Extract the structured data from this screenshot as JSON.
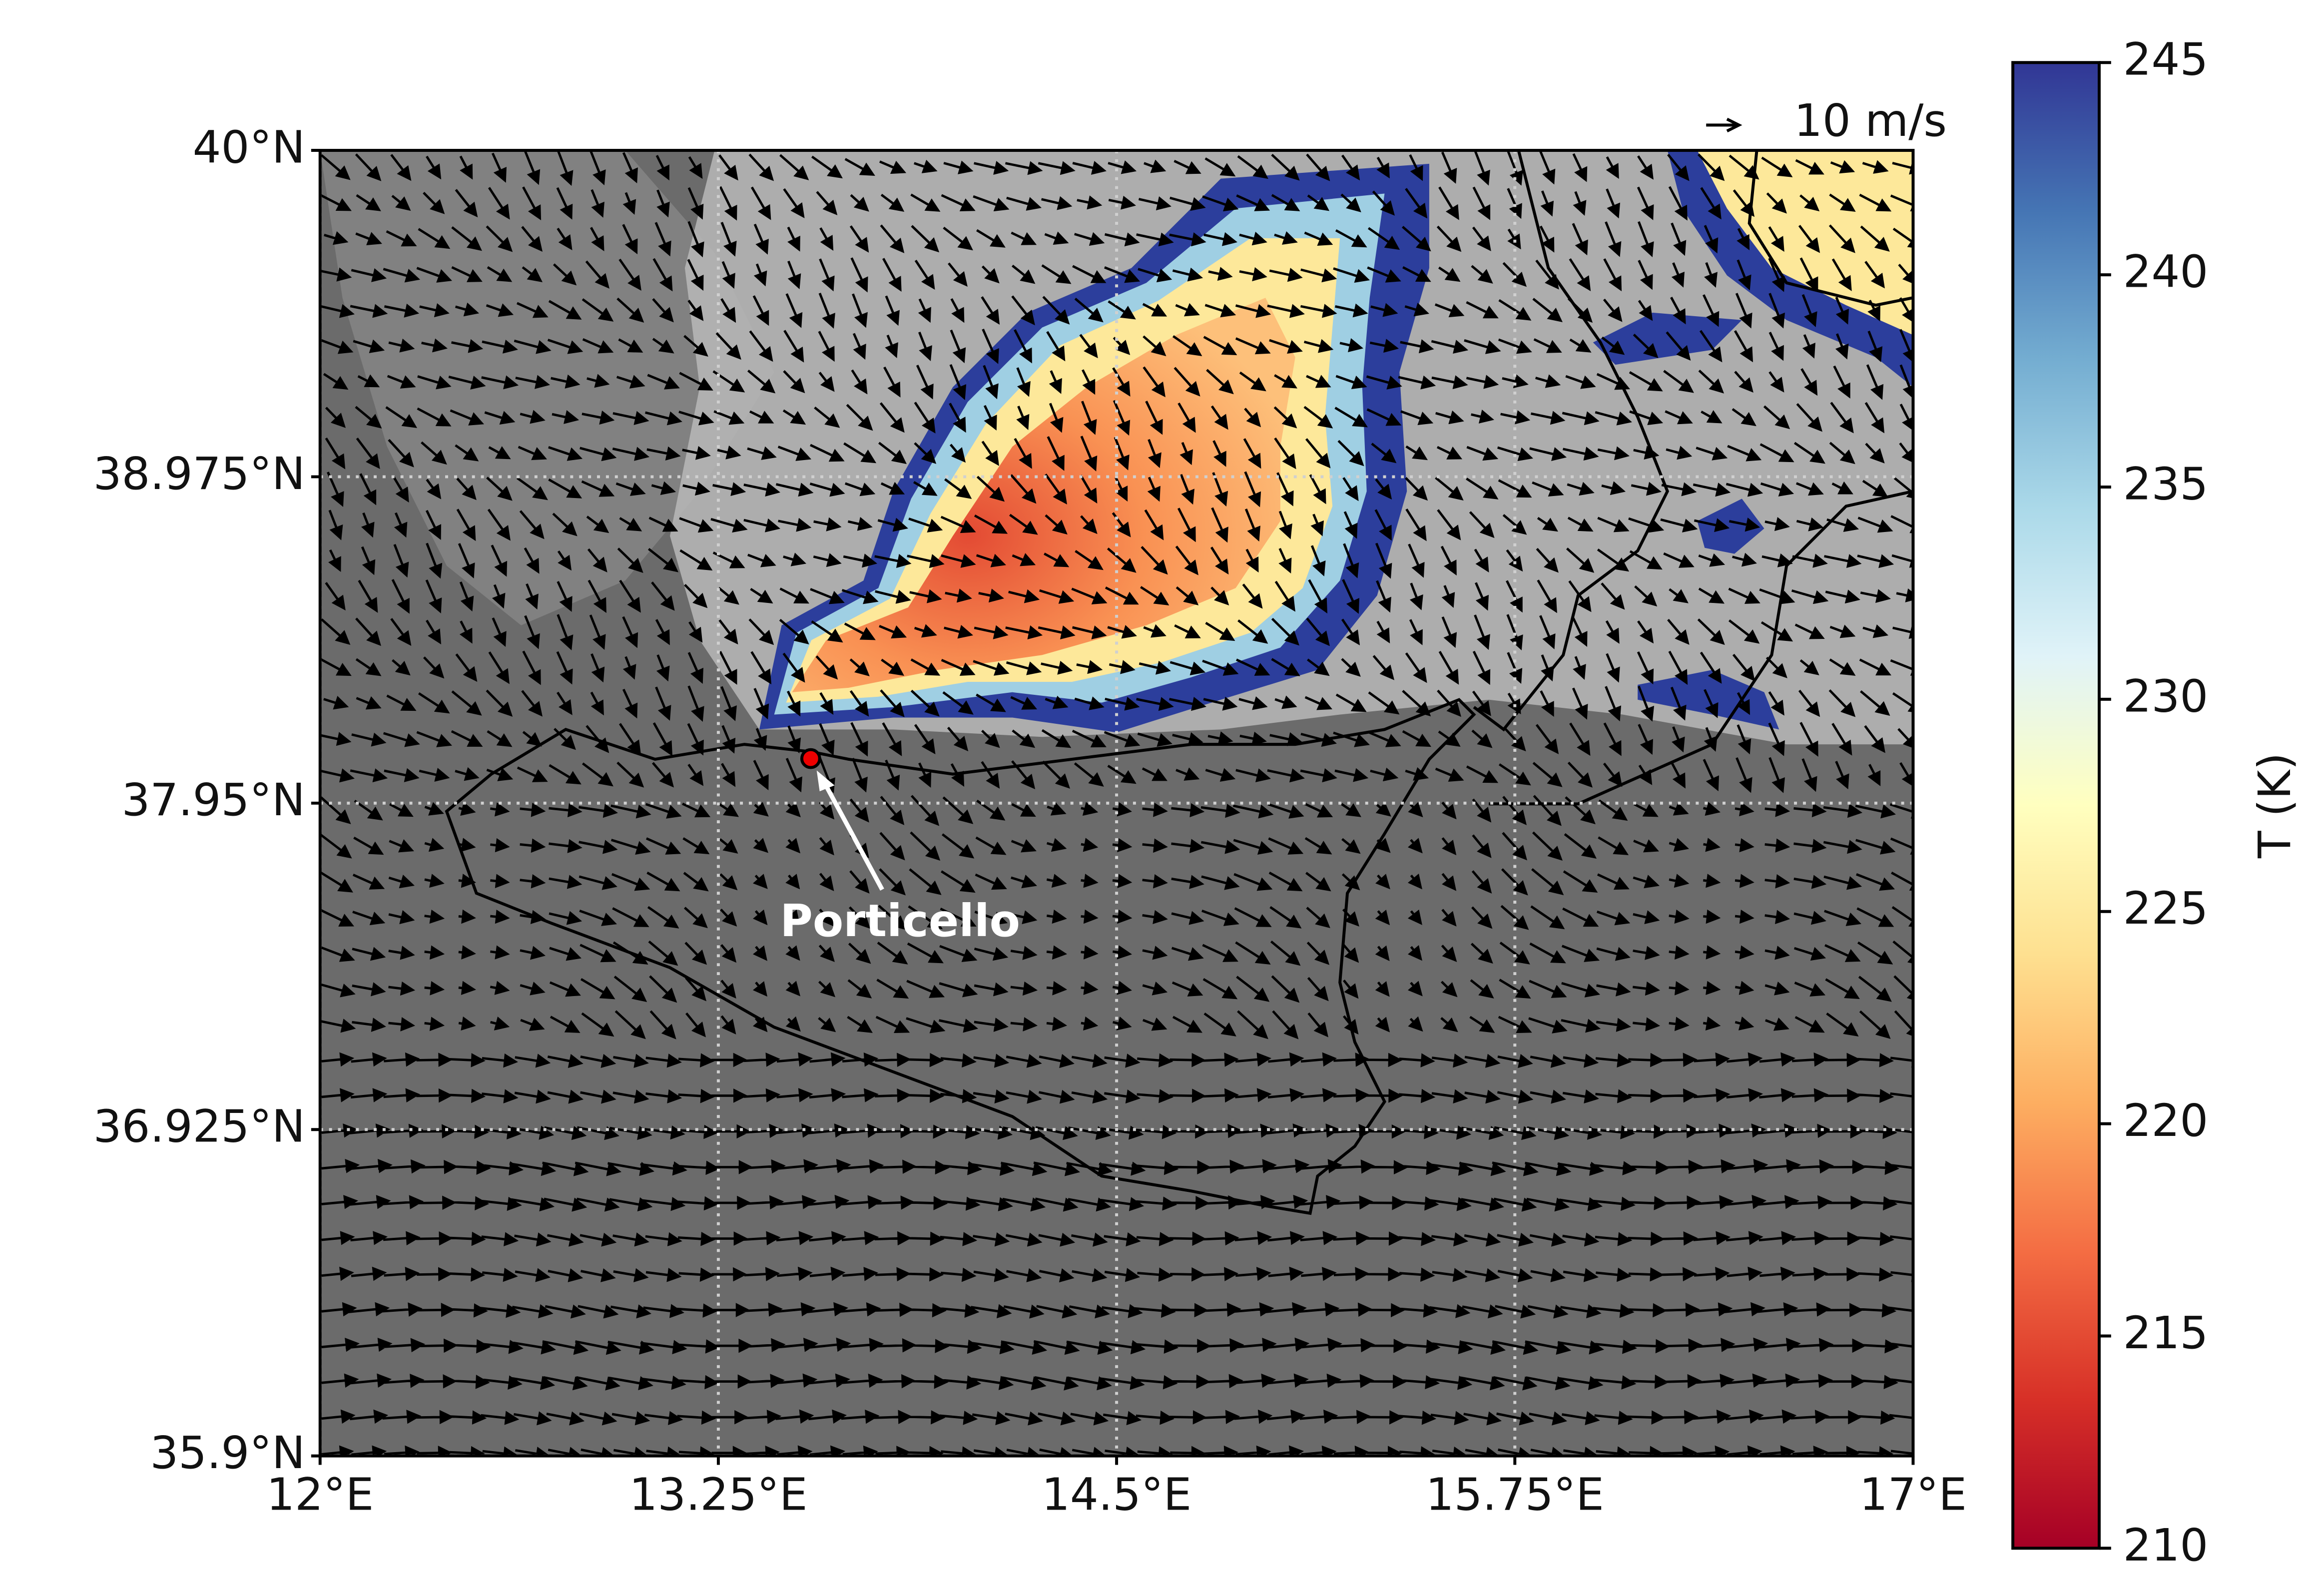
{
  "chart_data": {
    "type": "map",
    "xlim": [
      12,
      17
    ],
    "ylim": [
      35.9,
      40
    ],
    "xticks": [
      {
        "value": 12,
        "label": "12°E"
      },
      {
        "value": 13.25,
        "label": "13.25°E"
      },
      {
        "value": 14.5,
        "label": "14.5°E"
      },
      {
        "value": 15.75,
        "label": "15.75°E"
      },
      {
        "value": 17,
        "label": "17°E"
      }
    ],
    "yticks": [
      {
        "value": 35.9,
        "label": "35.9°N"
      },
      {
        "value": 36.925,
        "label": "36.925°N"
      },
      {
        "value": 37.95,
        "label": "37.95°N"
      },
      {
        "value": 38.975,
        "label": "38.975°N"
      },
      {
        "value": 40,
        "label": "40°N"
      }
    ],
    "grid": true,
    "colorbar": {
      "label": "T (K)",
      "lim": [
        210,
        245
      ],
      "ticks": [
        210,
        215,
        220,
        225,
        230,
        235,
        240,
        245
      ]
    },
    "quiver_key": "10 m/s",
    "annotation": {
      "text": "Porticello",
      "lon": 13.54,
      "lat": 38.09
    }
  }
}
